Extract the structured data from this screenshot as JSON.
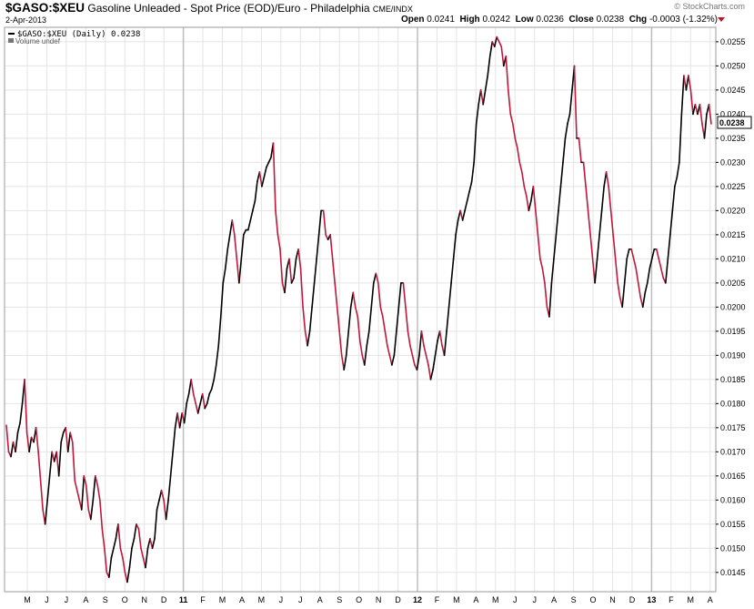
{
  "header": {
    "symbol": "$GASO:$XEU",
    "description": "Gasoline Unleaded - Spot Price (EOD)/Euro - Philadelphia",
    "exchange": "CME/INDX",
    "date": "2-Apr-2013",
    "brand": "© StockCharts.com",
    "open_label": "Open",
    "open": "0.0241",
    "high_label": "High",
    "high": "0.0242",
    "low_label": "Low",
    "low": "0.0236",
    "close_label": "Close",
    "close": "0.0238",
    "chg_label": "Chg",
    "chg": "-0.0003 (-1.32%)"
  },
  "legend": {
    "series": "$GASO:$XEU (Daily) 0.0238",
    "volume": "Volume undef"
  },
  "colors": {
    "up": "#000000",
    "down": "#c0183c",
    "grid": "#e4e4e4",
    "month_grid": "#cfcfcf"
  },
  "chart_data": {
    "type": "line",
    "last_value_label": "0.0238",
    "ylim": [
      0.0141,
      0.0258
    ],
    "y_ticks": [
      "0.0255",
      "0.0250",
      "0.0245",
      "0.0240",
      "0.0235",
      "0.0230",
      "0.0225",
      "0.0220",
      "0.0215",
      "0.0210",
      "0.0205",
      "0.0200",
      "0.0195",
      "0.0190",
      "0.0185",
      "0.0180",
      "0.0175",
      "0.0170",
      "0.0165",
      "0.0160",
      "0.0155",
      "0.0150",
      "0.0145"
    ],
    "x_ticks": [
      {
        "label": "M",
        "bold": false
      },
      {
        "label": "J",
        "bold": false
      },
      {
        "label": "J",
        "bold": false
      },
      {
        "label": "A",
        "bold": false
      },
      {
        "label": "S",
        "bold": false
      },
      {
        "label": "O",
        "bold": false
      },
      {
        "label": "N",
        "bold": false
      },
      {
        "label": "D",
        "bold": false
      },
      {
        "label": "11",
        "bold": true
      },
      {
        "label": "F",
        "bold": false
      },
      {
        "label": "M",
        "bold": false
      },
      {
        "label": "A",
        "bold": false
      },
      {
        "label": "M",
        "bold": false
      },
      {
        "label": "J",
        "bold": false
      },
      {
        "label": "J",
        "bold": false
      },
      {
        "label": "A",
        "bold": false
      },
      {
        "label": "S",
        "bold": false
      },
      {
        "label": "O",
        "bold": false
      },
      {
        "label": "N",
        "bold": false
      },
      {
        "label": "D",
        "bold": false
      },
      {
        "label": "12",
        "bold": true
      },
      {
        "label": "F",
        "bold": false
      },
      {
        "label": "M",
        "bold": false
      },
      {
        "label": "A",
        "bold": false
      },
      {
        "label": "M",
        "bold": false
      },
      {
        "label": "J",
        "bold": false
      },
      {
        "label": "J",
        "bold": false
      },
      {
        "label": "A",
        "bold": false
      },
      {
        "label": "S",
        "bold": false
      },
      {
        "label": "O",
        "bold": false
      },
      {
        "label": "N",
        "bold": false
      },
      {
        "label": "D",
        "bold": false
      },
      {
        "label": "13",
        "bold": true
      },
      {
        "label": "F",
        "bold": false
      },
      {
        "label": "M",
        "bold": false
      },
      {
        "label": "A",
        "bold": false
      }
    ],
    "series": [
      {
        "values": [
          0.01755,
          0.017,
          0.0169,
          0.0172,
          0.017,
          0.0174,
          0.0176,
          0.018,
          0.0185,
          0.0174,
          0.017,
          0.0173,
          0.0172,
          0.0175,
          0.017,
          0.0164,
          0.0158,
          0.0155,
          0.016,
          0.0165,
          0.017,
          0.0168,
          0.017,
          0.0165,
          0.0172,
          0.0174,
          0.0175,
          0.017,
          0.0174,
          0.0172,
          0.0164,
          0.0162,
          0.016,
          0.0158,
          0.0165,
          0.0163,
          0.0158,
          0.0156,
          0.016,
          0.0165,
          0.0163,
          0.016,
          0.0154,
          0.015,
          0.0145,
          0.0144,
          0.0148,
          0.015,
          0.0152,
          0.0155,
          0.015,
          0.0148,
          0.0145,
          0.0143,
          0.0146,
          0.015,
          0.0152,
          0.0155,
          0.0154,
          0.015,
          0.0148,
          0.0146,
          0.015,
          0.0152,
          0.015,
          0.0152,
          0.0158,
          0.016,
          0.0162,
          0.016,
          0.0156,
          0.016,
          0.0165,
          0.017,
          0.0175,
          0.0178,
          0.0175,
          0.0178,
          0.0176,
          0.018,
          0.0182,
          0.0185,
          0.0182,
          0.018,
          0.0178,
          0.018,
          0.0182,
          0.0179,
          0.018,
          0.0182,
          0.0183,
          0.0185,
          0.0188,
          0.0192,
          0.0198,
          0.0205,
          0.0208,
          0.0212,
          0.0215,
          0.0218,
          0.0215,
          0.021,
          0.0205,
          0.021,
          0.0215,
          0.0216,
          0.0216,
          0.0218,
          0.022,
          0.0222,
          0.0226,
          0.0228,
          0.0225,
          0.0227,
          0.0229,
          0.023,
          0.0231,
          0.0234,
          0.022,
          0.0215,
          0.0212,
          0.0205,
          0.0203,
          0.0208,
          0.021,
          0.0205,
          0.0206,
          0.021,
          0.0212,
          0.0208,
          0.02,
          0.0195,
          0.0192,
          0.0195,
          0.02,
          0.0205,
          0.021,
          0.0215,
          0.022,
          0.022,
          0.0215,
          0.0214,
          0.0215,
          0.021,
          0.0205,
          0.02,
          0.0195,
          0.019,
          0.0187,
          0.019,
          0.0195,
          0.02,
          0.0203,
          0.02,
          0.0198,
          0.0193,
          0.019,
          0.0188,
          0.0192,
          0.0195,
          0.02,
          0.0205,
          0.0207,
          0.0205,
          0.02,
          0.0198,
          0.0195,
          0.0192,
          0.019,
          0.0188,
          0.019,
          0.0195,
          0.02,
          0.0205,
          0.0205,
          0.02,
          0.0195,
          0.0192,
          0.019,
          0.0188,
          0.0187,
          0.019,
          0.0195,
          0.0192,
          0.019,
          0.0188,
          0.0185,
          0.0187,
          0.019,
          0.0193,
          0.0195,
          0.0192,
          0.019,
          0.0195,
          0.02,
          0.0205,
          0.021,
          0.0215,
          0.0218,
          0.022,
          0.0218,
          0.022,
          0.0222,
          0.0224,
          0.0226,
          0.023,
          0.0238,
          0.0242,
          0.0245,
          0.0242,
          0.0245,
          0.0248,
          0.0252,
          0.0255,
          0.0254,
          0.0256,
          0.0255,
          0.0254,
          0.025,
          0.0252,
          0.0245,
          0.024,
          0.0238,
          0.0235,
          0.0233,
          0.023,
          0.0228,
          0.0225,
          0.0223,
          0.022,
          0.0222,
          0.0225,
          0.022,
          0.0215,
          0.021,
          0.0208,
          0.0205,
          0.02,
          0.0198,
          0.0205,
          0.021,
          0.0215,
          0.022,
          0.0225,
          0.023,
          0.0235,
          0.0238,
          0.024,
          0.0245,
          0.025,
          0.0235,
          0.0235,
          0.023,
          0.023,
          0.0225,
          0.022,
          0.0215,
          0.021,
          0.0205,
          0.021,
          0.0215,
          0.022,
          0.0225,
          0.0228,
          0.0225,
          0.022,
          0.0215,
          0.021,
          0.0205,
          0.0202,
          0.02,
          0.0205,
          0.021,
          0.0212,
          0.0212,
          0.021,
          0.0208,
          0.0205,
          0.0202,
          0.02,
          0.0203,
          0.0205,
          0.0208,
          0.021,
          0.0212,
          0.0212,
          0.021,
          0.0208,
          0.0206,
          0.0205,
          0.021,
          0.0215,
          0.022,
          0.0225,
          0.0227,
          0.023,
          0.024,
          0.0248,
          0.0245,
          0.0248,
          0.0245,
          0.024,
          0.0242,
          0.024,
          0.0242,
          0.0238,
          0.0235,
          0.024,
          0.0242,
          0.0238
        ]
      }
    ]
  }
}
